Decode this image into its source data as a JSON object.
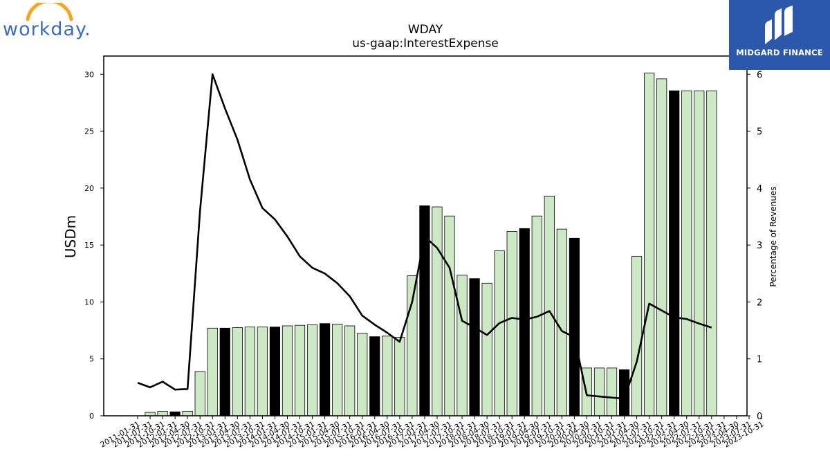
{
  "brand": {
    "left_logo_text": "workday.",
    "right_logo_text": "MIDGARD FINANCE",
    "left_logo_color": "#3d6db5",
    "left_logo_arc_color": "#f5a623",
    "right_logo_bg": "#2b58ab"
  },
  "chart_data": {
    "type": "bar",
    "title": "WDAY",
    "subtitle": "us-gaap:InterestExpense",
    "ylabel": "USDm",
    "y2label": "Percentage of Revenues",
    "ylim": [
      0,
      31.6
    ],
    "y2lim": [
      0,
      6.32
    ],
    "yticks": [
      0,
      5,
      10,
      15,
      20,
      25,
      30
    ],
    "y2ticks": [
      0,
      1,
      2,
      3,
      4,
      5,
      6
    ],
    "bar_fill": "#cce8c4",
    "highlight_fill": "#000000",
    "line_color": "#000000",
    "categories": [
      "2011-01-31",
      "2011-07-31",
      "2011-10-31",
      "2012-01-31",
      "2012-04-30",
      "2012-07-31",
      "2012-10-31",
      "2013-01-31",
      "2013-04-30",
      "2013-07-31",
      "2013-10-31",
      "2014-01-31",
      "2014-04-30",
      "2014-07-31",
      "2014-10-31",
      "2015-01-31",
      "2015-04-30",
      "2015-07-31",
      "2015-10-31",
      "2016-01-31",
      "2016-04-30",
      "2016-07-31",
      "2016-10-31",
      "2017-01-31",
      "2017-04-30",
      "2017-07-31",
      "2017-10-31",
      "2018-01-31",
      "2018-04-30",
      "2018-07-31",
      "2018-10-31",
      "2019-01-31",
      "2019-04-30",
      "2019-07-31",
      "2019-10-31",
      "2020-01-31",
      "2020-04-30",
      "2020-07-31",
      "2020-10-31",
      "2021-01-31",
      "2021-04-30",
      "2021-07-31",
      "2021-10-31",
      "2022-01-31",
      "2022-04-30",
      "2022-07-31",
      "2022-10-31",
      "2023-01-31",
      "2023-04-30",
      "2023-07-31",
      "2023-10-31"
    ],
    "tick_labels": [
      "2011-01-31",
      "2011-07-31",
      "2011-10-31",
      "2012-01-31",
      "2012-04-30",
      "2012-07-31",
      "2012-10-31",
      "2013-01-31",
      "2013-04-30",
      "2013-07-31",
      "2013-10-31",
      "2014-01-31",
      "2014-04-30",
      "2014-07-31",
      "2014-10-31",
      "2015-01-31",
      "2015-04-30",
      "2015-07-31",
      "2015-10-31",
      "2016-01-31",
      "2016-04-30",
      "2016-07-31",
      "2016-10-31",
      "2017-01-31",
      "2017-04-30",
      "2017-07-31",
      "2017-10-31",
      "2018-01-31",
      "2018-04-30",
      "2018-07-31",
      "2018-10-31",
      "2019-01-31",
      "2019-04-30",
      "2019-07-31",
      "2019-10-31",
      "2020-01-31",
      "2020-04-30",
      "2020-07-31",
      "2020-10-31",
      "2021-01-31",
      "2021-04-30",
      "2021-07-31",
      "2021-10-31",
      "2022-01-31",
      "2022-04-30",
      "2022-07-31",
      "2022-10-31",
      "2023-01-31",
      "2023-04-30",
      "2023-07-31",
      "2023-10-31"
    ],
    "values": [
      0,
      0.3,
      0.4,
      0.35,
      0.4,
      3.9,
      7.7,
      7.7,
      7.75,
      7.8,
      7.8,
      7.8,
      7.9,
      7.95,
      8.0,
      8.1,
      8.05,
      7.9,
      7.25,
      6.95,
      7.0,
      6.9,
      12.3,
      18.45,
      18.35,
      17.55,
      12.35,
      12.05,
      11.65,
      14.5,
      16.2,
      16.45,
      17.55,
      19.3,
      16.4,
      15.6,
      4.2,
      4.2,
      4.2,
      4.05,
      14.0,
      30.1,
      29.6,
      28.55,
      28.55,
      28.55,
      28.55,
      null,
      null,
      null,
      null
    ],
    "highlight": [
      false,
      false,
      false,
      true,
      false,
      false,
      false,
      true,
      false,
      false,
      false,
      true,
      false,
      false,
      false,
      true,
      false,
      false,
      false,
      true,
      false,
      false,
      false,
      true,
      false,
      false,
      false,
      true,
      false,
      false,
      false,
      true,
      false,
      false,
      false,
      true,
      false,
      false,
      false,
      true,
      false,
      false,
      false,
      true,
      false,
      false,
      false,
      false,
      false,
      false,
      false
    ],
    "line_values": [
      0.58,
      0.5,
      0.6,
      0.46,
      0.47,
      3.6,
      6.0,
      5.4,
      4.85,
      4.15,
      3.65,
      3.45,
      3.15,
      2.8,
      2.6,
      2.5,
      2.33,
      2.1,
      1.76,
      1.6,
      1.46,
      1.3,
      2.0,
      3.15,
      2.95,
      2.6,
      1.67,
      1.55,
      1.42,
      1.63,
      1.72,
      1.69,
      1.74,
      1.84,
      1.49,
      1.38,
      0.36,
      0.34,
      0.32,
      0.3,
      0.95,
      1.97,
      1.85,
      1.73,
      1.7,
      1.62,
      1.55,
      null,
      null,
      null,
      null
    ]
  }
}
